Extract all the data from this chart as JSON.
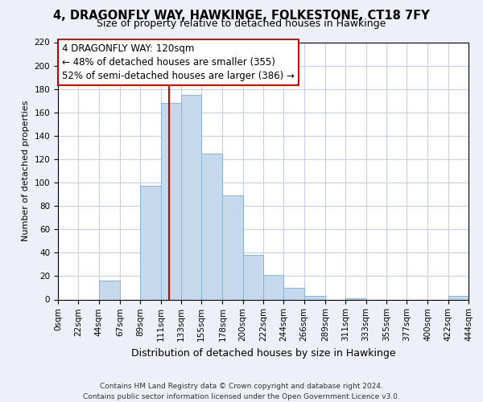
{
  "title": "4, DRAGONFLY WAY, HAWKINGE, FOLKESTONE, CT18 7FY",
  "subtitle": "Size of property relative to detached houses in Hawkinge",
  "xlabel": "Distribution of detached houses by size in Hawkinge",
  "ylabel": "Number of detached properties",
  "bin_edges": [
    0,
    22,
    44,
    67,
    89,
    111,
    133,
    155,
    178,
    200,
    222,
    244,
    266,
    289,
    311,
    333,
    355,
    377,
    400,
    422,
    444
  ],
  "bin_labels": [
    "0sqm",
    "22sqm",
    "44sqm",
    "67sqm",
    "89sqm",
    "111sqm",
    "133sqm",
    "155sqm",
    "178sqm",
    "200sqm",
    "222sqm",
    "244sqm",
    "266sqm",
    "289sqm",
    "311sqm",
    "333sqm",
    "355sqm",
    "377sqm",
    "400sqm",
    "422sqm",
    "444sqm"
  ],
  "bar_heights": [
    0,
    0,
    16,
    0,
    97,
    168,
    175,
    125,
    89,
    38,
    21,
    10,
    3,
    0,
    1,
    0,
    0,
    0,
    0,
    3
  ],
  "bar_color": "#c6d9ec",
  "bar_edge_color": "#8ab4d4",
  "vline_x": 120,
  "vline_color": "#cc0000",
  "annotation_line1": "4 DRAGONFLY WAY: 120sqm",
  "annotation_line2": "← 48% of detached houses are smaller (355)",
  "annotation_line3": "52% of semi-detached houses are larger (386) →",
  "ylim": [
    0,
    220
  ],
  "yticks": [
    0,
    20,
    40,
    60,
    80,
    100,
    120,
    140,
    160,
    180,
    200,
    220
  ],
  "footer_line1": "Contains HM Land Registry data © Crown copyright and database right 2024.",
  "footer_line2": "Contains public sector information licensed under the Open Government Licence v3.0.",
  "background_color": "#eef0f8",
  "plot_background_color": "#ffffff",
  "grid_color": "#c8cfe0",
  "title_fontsize": 10.5,
  "subtitle_fontsize": 9,
  "ylabel_fontsize": 8,
  "xlabel_fontsize": 9,
  "tick_fontsize": 7.5,
  "annot_fontsize": 8.5,
  "footer_fontsize": 6.5
}
